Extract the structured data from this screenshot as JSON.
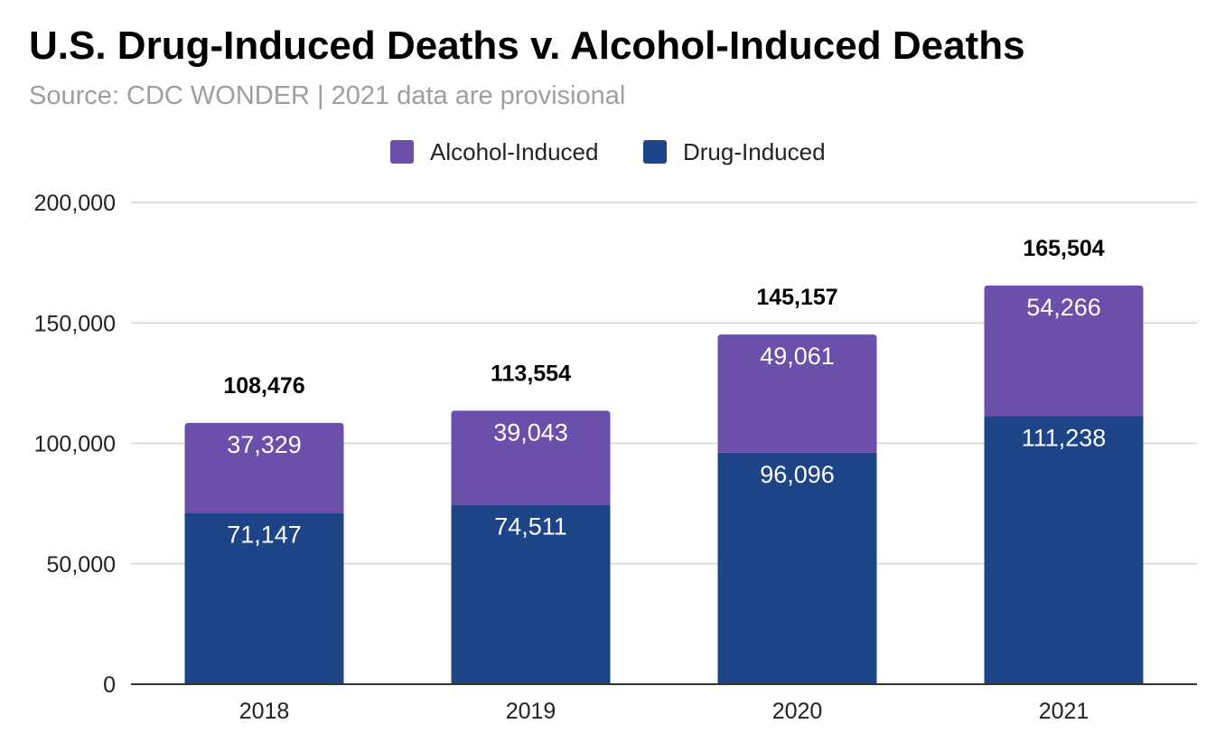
{
  "header": {
    "title": "U.S. Drug-Induced Deaths v. Alcohol-Induced Deaths",
    "subtitle": "Source: CDC WONDER | 2021 data are provisional"
  },
  "chart_data": {
    "type": "bar",
    "stacked": true,
    "categories": [
      "2018",
      "2019",
      "2020",
      "2021"
    ],
    "series": [
      {
        "name": "Drug-Induced",
        "color": "#1d4486",
        "values": [
          71147,
          74511,
          96096,
          111238
        ],
        "labels": [
          "71,147",
          "74,511",
          "96,096",
          "111,238"
        ]
      },
      {
        "name": "Alcohol-Induced",
        "color": "#6a4fab",
        "values": [
          37329,
          39043,
          49061,
          54266
        ],
        "labels": [
          "37,329",
          "39,043",
          "49,061",
          "54,266"
        ]
      }
    ],
    "totals": [
      108476,
      113554,
      145157,
      165504
    ],
    "total_labels": [
      "108,476",
      "113,554",
      "145,157",
      "165,504"
    ],
    "legend_order": [
      "Alcohol-Induced",
      "Drug-Induced"
    ],
    "legend_position": "top-center",
    "ylim": [
      0,
      200000
    ],
    "yticks": [
      0,
      50000,
      100000,
      150000,
      200000
    ],
    "ytick_labels": [
      "0",
      "50,000",
      "100,000",
      "150,000",
      "200,000"
    ],
    "grid": true,
    "xlabel": "",
    "ylabel": ""
  }
}
